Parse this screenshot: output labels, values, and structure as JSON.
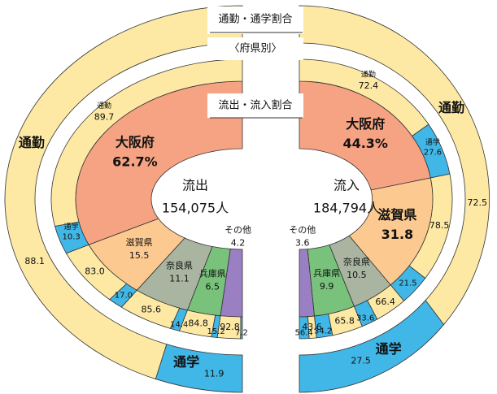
{
  "header": {
    "title": "通勤・通学割合",
    "subtitle": "〈府県別〉",
    "inner_title": "流出・流入割合"
  },
  "chart_data": [
    {
      "type": "pie",
      "side": "left",
      "center_label": "流出",
      "total_label": "154,075人",
      "categories": [
        "大阪府",
        "滋賀県",
        "奈良県",
        "兵庫県",
        "その他"
      ],
      "values": [
        62.7,
        15.5,
        11.1,
        6.5,
        4.2
      ],
      "value_labels": [
        "62.7%",
        "15.5",
        "11.1",
        "6.5",
        "4.2"
      ],
      "colors": [
        "#f5a383",
        "#fcc990",
        "#a9b5a0",
        "#79c27c",
        "#9a80c2"
      ],
      "commute_label": "通勤",
      "school_label": "通学",
      "commute": [
        89.7,
        83.0,
        85.6,
        84.8,
        92.8
      ],
      "commute_labels": [
        "89.7",
        "83.0",
        "85.6",
        "84.8",
        "92.8"
      ],
      "school": [
        10.3,
        17.0,
        14.4,
        15.2,
        7.2
      ],
      "school_labels": [
        "10.3",
        "17.0",
        "14.4",
        "15.2",
        "7.2"
      ],
      "commute_color": "#fde9a4",
      "school_color": "#41b7e7",
      "overall_commute": 88.1,
      "overall_school": 11.9
    },
    {
      "type": "pie",
      "side": "right",
      "center_label": "流入",
      "total_label": "184,794人",
      "categories": [
        "大阪府",
        "滋賀県",
        "奈良県",
        "兵庫県",
        "その他"
      ],
      "values": [
        44.3,
        31.8,
        10.5,
        9.9,
        3.6
      ],
      "value_labels": [
        "44.3%",
        "31.8",
        "10.5",
        "9.9",
        "3.6"
      ],
      "colors": [
        "#f5a383",
        "#fcc990",
        "#a9b5a0",
        "#79c27c",
        "#9a80c2"
      ],
      "commute_label": "通勤",
      "school_label": "通学",
      "commute": [
        72.4,
        78.5,
        66.4,
        65.8,
        43.6
      ],
      "commute_labels": [
        "72.4",
        "78.5",
        "66.4",
        "65.8",
        "43.6"
      ],
      "school": [
        27.6,
        21.5,
        33.6,
        34.2,
        56.4
      ],
      "school_labels": [
        "27.6",
        "21.5",
        "33.6",
        "34.2",
        "56.4"
      ],
      "commute_color": "#fde9a4",
      "school_color": "#41b7e7",
      "overall_commute": 72.5,
      "overall_school": 27.5
    }
  ]
}
